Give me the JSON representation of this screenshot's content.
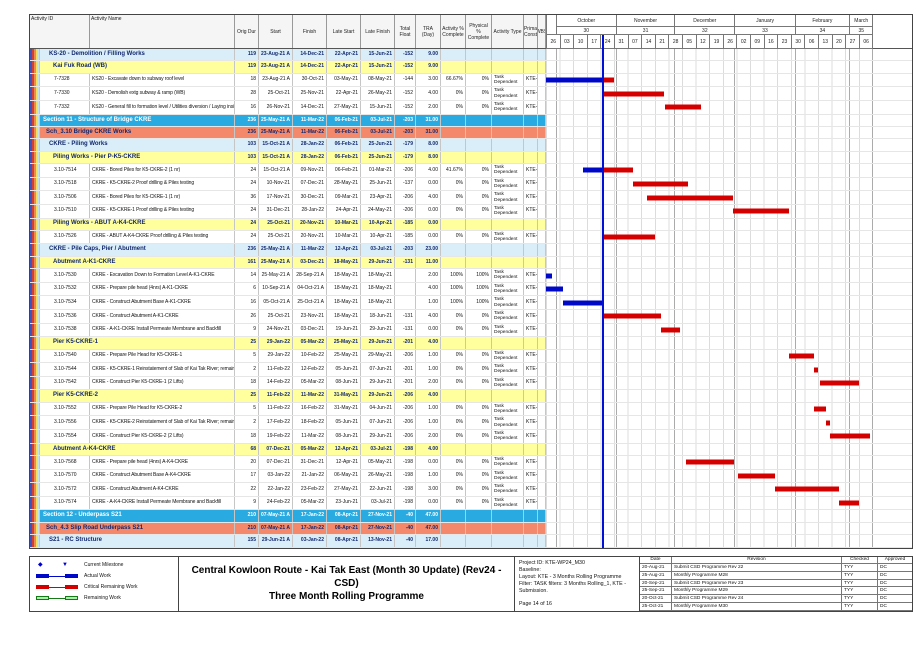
{
  "chart_data": {
    "type": "table",
    "title": "Central Kowloon Route - Kai Tak East (Month 30 Update) (Rev24 - CSD) Three Month Rolling Programme",
    "columns": [
      "Activity ID",
      "Activity Name",
      "Orig Dur",
      "Start",
      "Finish",
      "Late Start",
      "Late Finish",
      "Total Float",
      "TRA (Day)",
      "Activity % Complete",
      "Physical % Complete",
      "Activity Type",
      "Prima Const",
      "WBS"
    ],
    "timeline": {
      "origin": "26-Sep-21",
      "data_date": "25-Oct-21",
      "weeks": [
        "26",
        "03",
        "10",
        "17",
        "24",
        "31",
        "07",
        "14",
        "21",
        "28",
        "05",
        "12",
        "19",
        "26",
        "02",
        "09",
        "16",
        "23",
        "30",
        "06",
        "13",
        "20",
        "27",
        "06"
      ],
      "months": [
        {
          "label": "October",
          "num": "30",
          "from": "01-Oct-21",
          "to": "01-Nov-21"
        },
        {
          "label": "November",
          "num": "31",
          "from": "01-Nov-21",
          "to": "01-Dec-21"
        },
        {
          "label": "December",
          "num": "32",
          "from": "01-Dec-21",
          "to": "01-Jan-22"
        },
        {
          "label": "January",
          "num": "33",
          "from": "01-Jan-22",
          "to": "01-Feb-22"
        },
        {
          "label": "February",
          "num": "34",
          "from": "01-Feb-22",
          "to": "01-Mar-22"
        },
        {
          "label": "March",
          "num": "35",
          "from": "01-Mar-22",
          "to": "13-Mar-22"
        }
      ]
    },
    "rows": [
      {
        "k": "band",
        "name": "KS-20 - Demolition / Filling Works",
        "od": "119",
        "st": "23-Aug-21 A",
        "fn": "14-Dec-21",
        "ls": "22-Apr-21",
        "lf": "15-Jun-21",
        "tf": "-152",
        "tra": "9.00"
      },
      {
        "k": "sub",
        "name": "Kai Fuk Road (WB)",
        "od": "119",
        "st": "23-Aug-21 A",
        "fn": "14-Dec-21",
        "ls": "22-Apr-21",
        "lf": "15-Jun-21",
        "tf": "-152",
        "tra": "9.00"
      },
      {
        "k": "act",
        "id": "7-7328",
        "name": "KS20 - Excavate down to subway roof level",
        "od": "18",
        "st": "23-Aug-21 A",
        "fn": "30-Oct-21",
        "ls": "03-May-21",
        "lf": "08-May-21",
        "tf": "-144",
        "tra": "3.00",
        "ap": "66.67%",
        "pp": "0%",
        "at": "Task Dependent",
        "wbs": "KTE-",
        "bars": [
          [
            "a",
            "26-Sep-21",
            "25-Oct-21"
          ],
          [
            "c",
            "25-Oct-21",
            "30-Oct-21"
          ]
        ]
      },
      {
        "k": "act",
        "id": "7-7330",
        "name": "KS20 - Demolish extg subway & ramp (WB)",
        "od": "28",
        "st": "25-Oct-21",
        "fn": "25-Nov-21",
        "ls": "22-Apr-21",
        "lf": "26-May-21",
        "tf": "-152",
        "tra": "4.00",
        "ap": "0%",
        "pp": "0%",
        "at": "Task Dependent",
        "wbs": "KTE-",
        "bars": [
          [
            "c",
            "25-Oct-21",
            "25-Nov-21"
          ]
        ]
      },
      {
        "k": "act",
        "id": "7-7332",
        "name": "KS20 - General fill to formation level / Utilities diversion / Laying inside subway",
        "od": "16",
        "st": "26-Nov-21",
        "fn": "14-Dec-21",
        "ls": "27-May-21",
        "lf": "15-Jun-21",
        "tf": "-152",
        "tra": "2.00",
        "ap": "0%",
        "pp": "0%",
        "at": "Task Dependent",
        "wbs": "KTE-",
        "bars": [
          [
            "c",
            "26-Nov-21",
            "14-Dec-21"
          ]
        ]
      },
      {
        "k": "section",
        "name": "Section 11 - Structure of Bridge CKRE",
        "od": "236",
        "st": "25-May-21 A",
        "fn": "11-Mar-22",
        "ls": "06-Feb-21",
        "lf": "03-Jul-21",
        "tf": "-203",
        "tra": "31.00"
      },
      {
        "k": "sch",
        "name": "Sch_3.10 Bridge CKRE Works",
        "od": "236",
        "st": "25-May-21 A",
        "fn": "11-Mar-22",
        "ls": "06-Feb-21",
        "lf": "03-Jul-21",
        "tf": "-203",
        "tra": "31.00"
      },
      {
        "k": "band",
        "name": "CKRE - Piling Works",
        "od": "103",
        "st": "15-Oct-21 A",
        "fn": "28-Jan-22",
        "ls": "06-Feb-21",
        "lf": "25-Jun-21",
        "tf": "-179",
        "tra": "8.00"
      },
      {
        "k": "sub",
        "name": "Piling Works - Pier P-K5-CKRE",
        "od": "103",
        "st": "15-Oct-21 A",
        "fn": "28-Jan-22",
        "ls": "06-Feb-21",
        "lf": "25-Jun-21",
        "tf": "-179",
        "tra": "8.00"
      },
      {
        "k": "act",
        "id": "3.10-7514",
        "name": "CKRE - Bored Piles for K5-CKRE-2 (1 nr)",
        "od": "24",
        "st": "15-Oct-21 A",
        "fn": "09-Nov-21",
        "ls": "06-Feb-21",
        "lf": "01-Mar-21",
        "tf": "-206",
        "tra": "4.00",
        "ap": "41.67%",
        "pp": "0%",
        "at": "Task Dependent",
        "wbs": "KTE-",
        "bars": [
          [
            "a",
            "15-Oct-21",
            "25-Oct-21"
          ],
          [
            "c",
            "25-Oct-21",
            "09-Nov-21"
          ]
        ]
      },
      {
        "k": "act",
        "id": "3.10-7518",
        "name": "CKRE - K5-CKRE-2 Proof drilling & Piles testing",
        "od": "24",
        "st": "10-Nov-21",
        "fn": "07-Dec-21",
        "ls": "28-May-21",
        "lf": "25-Jun-21",
        "tf": "-137",
        "tra": "0.00",
        "ap": "0%",
        "pp": "0%",
        "at": "Task Dependent",
        "wbs": "KTE-",
        "bars": [
          [
            "c",
            "10-Nov-21",
            "07-Dec-21"
          ]
        ]
      },
      {
        "k": "act",
        "id": "3.10-7506",
        "name": "CKRE - Bored Piles for K5-CKRE-1 (1 nr)",
        "od": "36",
        "st": "17-Nov-21",
        "fn": "30-Dec-21",
        "ls": "09-Mar-21",
        "lf": "23-Apr-21",
        "tf": "-206",
        "tra": "4.00",
        "ap": "0%",
        "pp": "0%",
        "at": "Task Dependent",
        "wbs": "KTE-",
        "bars": [
          [
            "c",
            "17-Nov-21",
            "30-Dec-21"
          ]
        ]
      },
      {
        "k": "act",
        "id": "3.10-7510",
        "name": "CKRE - K5-CKRE-1 Proof drilling & Piles testing",
        "od": "24",
        "st": "31-Dec-21",
        "fn": "28-Jan-22",
        "ls": "24-Apr-21",
        "lf": "24-May-21",
        "tf": "-206",
        "tra": "0.00",
        "ap": "0%",
        "pp": "0%",
        "at": "Task Dependent",
        "wbs": "KTE-",
        "bars": [
          [
            "c",
            "31-Dec-21",
            "28-Jan-22"
          ]
        ]
      },
      {
        "k": "sub",
        "name": "Piling Works - ABUT A-K4-CKRE",
        "od": "24",
        "st": "25-Oct-21",
        "fn": "20-Nov-21",
        "ls": "10-Mar-21",
        "lf": "10-Apr-21",
        "tf": "-185",
        "tra": "0.00"
      },
      {
        "k": "act",
        "id": "3.10-7526",
        "name": "CKRE - ABUT A-K4-CKRE Proof drilling & Piles testing",
        "od": "24",
        "st": "25-Oct-21",
        "fn": "20-Nov-21",
        "ls": "10-Mar-21",
        "lf": "10-Apr-21",
        "tf": "-185",
        "tra": "0.00",
        "ap": "0%",
        "pp": "0%",
        "at": "Task Dependent",
        "wbs": "KTE-",
        "bars": [
          [
            "c",
            "25-Oct-21",
            "20-Nov-21"
          ]
        ]
      },
      {
        "k": "band",
        "name": "CKRE - Pile Caps, Pier / Abutment",
        "od": "236",
        "st": "25-May-21 A",
        "fn": "11-Mar-22",
        "ls": "12-Apr-21",
        "lf": "03-Jul-21",
        "tf": "-203",
        "tra": "23.00"
      },
      {
        "k": "sub",
        "name": "Abutment A-K1-CKRE",
        "od": "161",
        "st": "25-May-21 A",
        "fn": "03-Dec-21",
        "ls": "18-May-21",
        "lf": "29-Jun-21",
        "tf": "-131",
        "tra": "11.00"
      },
      {
        "k": "act",
        "id": "3.10-7530",
        "name": "CKRE - Excavation Down to Formation Level A-K1-CKRE",
        "od": "14",
        "st": "25-May-21 A",
        "fn": "28-Sep-21 A",
        "ls": "18-May-21",
        "lf": "18-May-21",
        "tf": "",
        "tra": "2.00",
        "ap": "100%",
        "pp": "100%",
        "at": "Task Dependent",
        "wbs": "KTE-",
        "bars": [
          [
            "a",
            "26-Sep-21",
            "28-Sep-21"
          ]
        ]
      },
      {
        "k": "act",
        "id": "3.10-7532",
        "name": "CKRE - Prepare pile head (4nrs) A-K1-CKRE",
        "od": "6",
        "st": "10-Sep-21 A",
        "fn": "04-Oct-21 A",
        "ls": "18-May-21",
        "lf": "18-May-21",
        "tf": "",
        "tra": "4.00",
        "ap": "100%",
        "pp": "100%",
        "at": "Task Dependent",
        "wbs": "KTE-",
        "bars": [
          [
            "a",
            "26-Sep-21",
            "04-Oct-21"
          ]
        ]
      },
      {
        "k": "act",
        "id": "3.10-7534",
        "name": "CKRE - Construct Abutment Base A-K1-CKRE",
        "od": "16",
        "st": "05-Oct-21 A",
        "fn": "25-Oct-21 A",
        "ls": "18-May-21",
        "lf": "18-May-21",
        "tf": "",
        "tra": "1.00",
        "ap": "100%",
        "pp": "100%",
        "at": "Task Dependent",
        "wbs": "KTE-",
        "bars": [
          [
            "a",
            "05-Oct-21",
            "25-Oct-21"
          ]
        ]
      },
      {
        "k": "act",
        "id": "3.10-7536",
        "name": "CKRE - Construct Abutment A-K1-CKRE",
        "od": "26",
        "st": "25-Oct-21",
        "fn": "23-Nov-21",
        "ls": "18-May-21",
        "lf": "18-Jun-21",
        "tf": "-131",
        "tra": "4.00",
        "ap": "0%",
        "pp": "0%",
        "at": "Task Dependent",
        "wbs": "KTE-",
        "bars": [
          [
            "c",
            "25-Oct-21",
            "23-Nov-21"
          ]
        ]
      },
      {
        "k": "act",
        "id": "3.10-7538",
        "name": "CKRE - A-K1-CKRE Install Permeate Membrane and Backfill",
        "od": "9",
        "st": "24-Nov-21",
        "fn": "03-Dec-21",
        "ls": "19-Jun-21",
        "lf": "29-Jun-21",
        "tf": "-131",
        "tra": "0.00",
        "ap": "0%",
        "pp": "0%",
        "at": "Task Dependent",
        "wbs": "KTE-",
        "bars": [
          [
            "c",
            "24-Nov-21",
            "03-Dec-21"
          ]
        ]
      },
      {
        "k": "sub",
        "name": "Pier K5-CKRE-1",
        "od": "25",
        "st": "29-Jan-22",
        "fn": "05-Mar-22",
        "ls": "25-May-21",
        "lf": "29-Jun-21",
        "tf": "-201",
        "tra": "4.00"
      },
      {
        "k": "act",
        "id": "3.10-7540",
        "name": "CKRE - Prepare Pile Head for K5-CKRE-1",
        "od": "5",
        "st": "29-Jan-22",
        "fn": "10-Feb-22",
        "ls": "25-May-21",
        "lf": "29-May-21",
        "tf": "-206",
        "tra": "1.00",
        "ap": "0%",
        "pp": "0%",
        "at": "Task Dependent",
        "wbs": "KTE-",
        "bars": [
          [
            "c",
            "29-Jan-22",
            "10-Feb-22"
          ]
        ]
      },
      {
        "k": "act",
        "id": "3.10-7544",
        "name": "CKRE - K5-CKRE-1 Reinstatement of Slab of Kai Tak River; remaining works",
        "od": "2",
        "st": "11-Feb-22",
        "fn": "12-Feb-22",
        "ls": "05-Jun-21",
        "lf": "07-Jun-21",
        "tf": "-201",
        "tra": "1.00",
        "ap": "0%",
        "pp": "0%",
        "at": "Task Dependent",
        "wbs": "KTE-",
        "bars": [
          [
            "c",
            "11-Feb-22",
            "12-Feb-22"
          ]
        ]
      },
      {
        "k": "act",
        "id": "3.10-7542",
        "name": "CKRE - Construct Pier K5-CKRE-1 (2 Lifts)",
        "od": "18",
        "st": "14-Feb-22",
        "fn": "05-Mar-22",
        "ls": "08-Jun-21",
        "lf": "29-Jun-21",
        "tf": "-201",
        "tra": "2.00",
        "ap": "0%",
        "pp": "0%",
        "at": "Task Dependent",
        "wbs": "KTE-",
        "bars": [
          [
            "c",
            "14-Feb-22",
            "05-Mar-22"
          ]
        ]
      },
      {
        "k": "sub",
        "name": "Pier K5-CKRE-2",
        "od": "25",
        "st": "11-Feb-22",
        "fn": "11-Mar-22",
        "ls": "31-May-21",
        "lf": "29-Jun-21",
        "tf": "-206",
        "tra": "4.00"
      },
      {
        "k": "act",
        "id": "3.10-7552",
        "name": "CKRE - Prepare Pile Head for K5-CKRE-2",
        "od": "5",
        "st": "11-Feb-22",
        "fn": "16-Feb-22",
        "ls": "31-May-21",
        "lf": "04-Jun-21",
        "tf": "-206",
        "tra": "1.00",
        "ap": "0%",
        "pp": "0%",
        "at": "Task Dependent",
        "wbs": "KTE-",
        "bars": [
          [
            "c",
            "11-Feb-22",
            "16-Feb-22"
          ]
        ]
      },
      {
        "k": "act",
        "id": "3.10-7556",
        "name": "CKRE - K5-CKRE-2 Reinstatement of Slab of Kai Tak River; remaining works",
        "od": "2",
        "st": "17-Feb-22",
        "fn": "18-Feb-22",
        "ls": "05-Jun-21",
        "lf": "07-Jun-21",
        "tf": "-206",
        "tra": "1.00",
        "ap": "0%",
        "pp": "0%",
        "at": "Task Dependent",
        "wbs": "KTE-",
        "bars": [
          [
            "c",
            "17-Feb-22",
            "18-Feb-22"
          ]
        ]
      },
      {
        "k": "act",
        "id": "3.10-7554",
        "name": "CKRE - Construct Pier K5-CKRE-2 (2 Lifts)",
        "od": "18",
        "st": "19-Feb-22",
        "fn": "11-Mar-22",
        "ls": "08-Jun-21",
        "lf": "29-Jun-21",
        "tf": "-206",
        "tra": "2.00",
        "ap": "0%",
        "pp": "0%",
        "at": "Task Dependent",
        "wbs": "KTE-",
        "bars": [
          [
            "c",
            "19-Feb-22",
            "11-Mar-22"
          ]
        ]
      },
      {
        "k": "sub",
        "name": "Abutment A-K4-CKRE",
        "od": "68",
        "st": "07-Dec-21",
        "fn": "05-Mar-22",
        "ls": "12-Apr-21",
        "lf": "03-Jul-21",
        "tf": "-198",
        "tra": "4.00"
      },
      {
        "k": "act",
        "id": "3.10-7568",
        "name": "CKRE - Prepare pile head (4nrs) A-K4-CKRE",
        "od": "20",
        "st": "07-Dec-21",
        "fn": "31-Dec-21",
        "ls": "12-Apr-21",
        "lf": "05-May-21",
        "tf": "-198",
        "tra": "0.00",
        "ap": "0%",
        "pp": "0%",
        "at": "Task Dependent",
        "wbs": "KTE-",
        "bars": [
          [
            "c",
            "07-Dec-21",
            "31-Dec-21"
          ]
        ]
      },
      {
        "k": "act",
        "id": "3.10-7570",
        "name": "CKRE - Construct Abutment Base A-K4-CKRE",
        "od": "17",
        "st": "03-Jan-22",
        "fn": "21-Jan-22",
        "ls": "06-May-21",
        "lf": "26-May-21",
        "tf": "-198",
        "tra": "1.00",
        "ap": "0%",
        "pp": "0%",
        "at": "Task Dependent",
        "wbs": "KTE-",
        "bars": [
          [
            "c",
            "03-Jan-22",
            "21-Jan-22"
          ]
        ]
      },
      {
        "k": "act",
        "id": "3.10-7572",
        "name": "CKRE - Construct Abutment A-K4-CKRE",
        "od": "22",
        "st": "22-Jan-22",
        "fn": "23-Feb-22",
        "ls": "27-May-21",
        "lf": "22-Jun-21",
        "tf": "-198",
        "tra": "3.00",
        "ap": "0%",
        "pp": "0%",
        "at": "Task Dependent",
        "wbs": "KTE-",
        "bars": [
          [
            "c",
            "22-Jan-22",
            "23-Feb-22"
          ]
        ]
      },
      {
        "k": "act",
        "id": "3.10-7574",
        "name": "CKRE - A-K4-CKRE Install Permeate Membrane and Backfill",
        "od": "9",
        "st": "24-Feb-22",
        "fn": "05-Mar-22",
        "ls": "23-Jun-21",
        "lf": "03-Jul-21",
        "tf": "-198",
        "tra": "0.00",
        "ap": "0%",
        "pp": "0%",
        "at": "Task Dependent",
        "wbs": "KTE-",
        "bars": [
          [
            "c",
            "24-Feb-22",
            "05-Mar-22"
          ]
        ]
      },
      {
        "k": "section",
        "name": "Section 12 - Underpass S21",
        "od": "210",
        "st": "07-May-21 A",
        "fn": "17-Jan-22",
        "ls": "08-Apr-21",
        "lf": "27-Nov-21",
        "tf": "-40",
        "tra": "47.00"
      },
      {
        "k": "sch",
        "name": "Sch_4.3 Slip Road Underpass S21",
        "od": "210",
        "st": "07-May-21 A",
        "fn": "17-Jan-22",
        "ls": "08-Apr-21",
        "lf": "27-Nov-21",
        "tf": "-40",
        "tra": "47.00"
      },
      {
        "k": "band",
        "name": "S21 - RC Structure",
        "od": "155",
        "st": "29-Jun-21 A",
        "fn": "03-Jan-22",
        "ls": "08-Apr-21",
        "lf": "13-Nov-21",
        "tf": "-40",
        "tra": "17.00"
      }
    ]
  },
  "colors": {
    "section_bg": "#29ABE2",
    "sch_bg": "#F4886B",
    "band_bg": "#D9EEF8",
    "sub_bg": "#FFFF9E",
    "actual_bar": "#0008C8",
    "critical_bar": "#D40000",
    "remaining_bar": "#A8F0A8",
    "data_date_line": "#0010D8",
    "milestone": "#0000CC"
  },
  "footer": {
    "legend": {
      "items": [
        {
          "icon": "milestone",
          "label": "Current Milestone"
        },
        {
          "icon": "actual",
          "label": "Actual Work"
        },
        {
          "icon": "critical",
          "label": "Critical Remaining Work"
        },
        {
          "icon": "remaining",
          "label": "Remaining Work"
        }
      ]
    },
    "title": {
      "line1": "Central Kowloon Route - Kai Tak East (Month 30 Update) (Rev24 - CSD)",
      "line2": "Three Month Rolling Programme"
    },
    "project": {
      "lines": [
        "Project ID: KTE-WP24_M30",
        "Baseline:",
        "Layout: KTE - 3 Months Rolling Programme",
        "Filter: TASK filters: 3 Months Rolling_1, KTE - Submission."
      ],
      "page": "Page 14 of 16"
    },
    "revisions": {
      "headers": [
        "Date",
        "Revision",
        "Checked",
        "Approved"
      ],
      "rows": [
        [
          "20-Aug-21",
          "Submit CSD Programme Rev 22",
          "TYY",
          "DC"
        ],
        [
          "25-Aug-21",
          "Monthly Programme M28",
          "TYY",
          "DC"
        ],
        [
          "20-Sep-21",
          "Submit CSD Programme Rev 23",
          "TYY",
          "DC"
        ],
        [
          "25-Sep-21",
          "Monthly Programme M29",
          "TYY",
          "DC"
        ],
        [
          "20-Oct-21",
          "Submit CSD Programme Rev 24",
          "TYY",
          "DC"
        ],
        [
          "25-Oct-21",
          "Monthly Programme M30",
          "TYY",
          "DC"
        ]
      ]
    }
  }
}
